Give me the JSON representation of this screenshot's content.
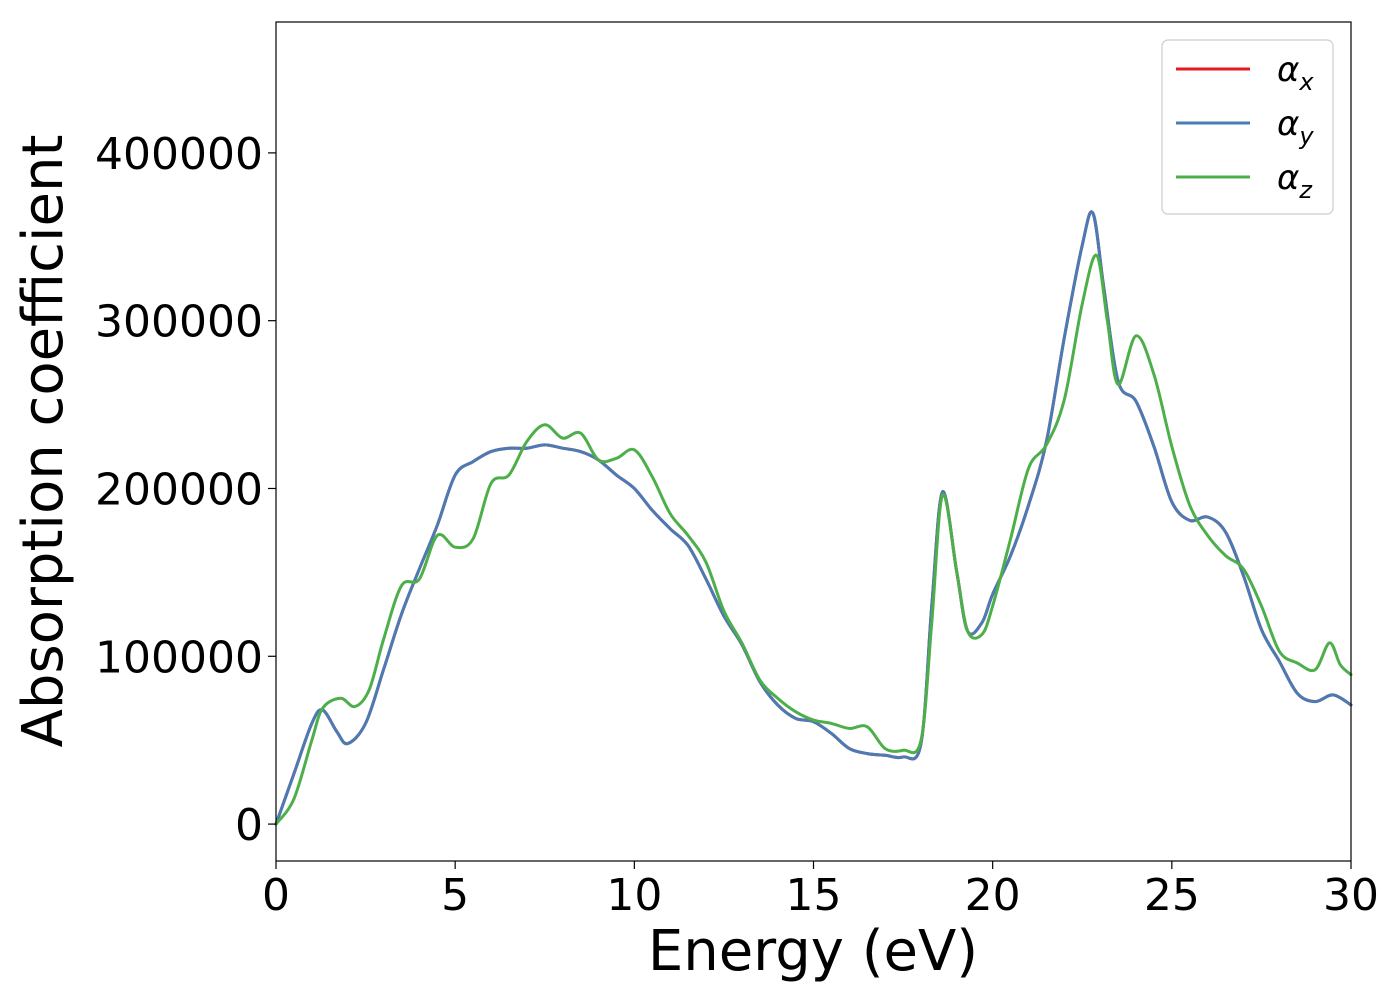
{
  "chart_data": {
    "type": "line",
    "title": "",
    "xlabel": "Energy (eV)",
    "ylabel": "Absorption coefficient",
    "xlim": [
      0,
      30
    ],
    "ylim": [
      -22000,
      478000
    ],
    "xticks": [
      0,
      5,
      10,
      15,
      20,
      25,
      30
    ],
    "yticks": [
      0,
      100000,
      200000,
      300000,
      400000
    ],
    "grid": false,
    "legend_position": "top-right",
    "series": [
      {
        "name": "α_x",
        "symbol": "α",
        "subscript": "x",
        "color": "#e41a1c",
        "x": [
          0,
          0.5,
          1.0,
          1.3,
          1.7,
          2.0,
          2.5,
          3.0,
          3.5,
          4.0,
          4.5,
          5.0,
          5.5,
          6.0,
          6.5,
          7.0,
          7.5,
          8.0,
          8.5,
          9.0,
          9.5,
          10.0,
          10.5,
          11.0,
          11.5,
          12.0,
          12.5,
          13.0,
          13.5,
          14.0,
          14.5,
          15.0,
          15.5,
          16.0,
          16.5,
          17.0,
          17.5,
          18.0,
          18.3,
          18.6,
          19.0,
          19.3,
          19.7,
          20.0,
          20.5,
          21.0,
          21.5,
          22.0,
          22.5,
          22.8,
          23.1,
          23.5,
          24.0,
          24.5,
          25.0,
          25.5,
          26.0,
          26.5,
          27.0,
          27.5,
          28.0,
          28.5,
          29.0,
          29.5,
          30.0
        ],
        "values": [
          0,
          30000,
          60000,
          68000,
          55000,
          48000,
          60000,
          92000,
          125000,
          152000,
          178000,
          208000,
          216000,
          222000,
          224000,
          224000,
          226000,
          224000,
          222000,
          217000,
          208000,
          200000,
          187000,
          176000,
          166000,
          146000,
          124000,
          107000,
          85000,
          71000,
          63000,
          61000,
          54000,
          45000,
          42000,
          41000,
          40000,
          48000,
          130000,
          198000,
          150000,
          115000,
          120000,
          137000,
          160000,
          190000,
          228000,
          290000,
          345000,
          364000,
          320000,
          264000,
          252000,
          225000,
          192000,
          181000,
          183000,
          174000,
          148000,
          116000,
          97000,
          78000,
          73000,
          77000,
          71000
        ]
      },
      {
        "name": "α_y",
        "symbol": "α",
        "subscript": "y",
        "color": "#4a7bb5",
        "x": [
          0,
          0.5,
          1.0,
          1.3,
          1.7,
          2.0,
          2.5,
          3.0,
          3.5,
          4.0,
          4.5,
          5.0,
          5.5,
          6.0,
          6.5,
          7.0,
          7.5,
          8.0,
          8.5,
          9.0,
          9.5,
          10.0,
          10.5,
          11.0,
          11.5,
          12.0,
          12.5,
          13.0,
          13.5,
          14.0,
          14.5,
          15.0,
          15.5,
          16.0,
          16.5,
          17.0,
          17.5,
          18.0,
          18.3,
          18.6,
          19.0,
          19.3,
          19.7,
          20.0,
          20.5,
          21.0,
          21.5,
          22.0,
          22.5,
          22.8,
          23.1,
          23.5,
          24.0,
          24.5,
          25.0,
          25.5,
          26.0,
          26.5,
          27.0,
          27.5,
          28.0,
          28.5,
          29.0,
          29.5,
          30.0
        ],
        "values": [
          0,
          30000,
          60000,
          68000,
          55000,
          48000,
          60000,
          92000,
          125000,
          152000,
          178000,
          208000,
          216000,
          222000,
          224000,
          224000,
          226000,
          224000,
          222000,
          217000,
          208000,
          200000,
          187000,
          176000,
          166000,
          146000,
          124000,
          107000,
          85000,
          71000,
          63000,
          61000,
          54000,
          45000,
          42000,
          41000,
          40000,
          48000,
          130000,
          198000,
          150000,
          115000,
          120000,
          137000,
          160000,
          190000,
          228000,
          290000,
          345000,
          364000,
          320000,
          264000,
          252000,
          225000,
          192000,
          181000,
          183000,
          174000,
          148000,
          116000,
          97000,
          78000,
          73000,
          77000,
          71000
        ]
      },
      {
        "name": "α_z",
        "symbol": "α",
        "subscript": "z",
        "color": "#4daf4a",
        "x": [
          0,
          0.5,
          1.0,
          1.3,
          1.8,
          2.2,
          2.6,
          3.0,
          3.5,
          4.0,
          4.5,
          5.0,
          5.5,
          6.0,
          6.5,
          7.0,
          7.5,
          8.0,
          8.5,
          9.0,
          9.5,
          10.0,
          10.5,
          11.0,
          11.5,
          12.0,
          12.5,
          13.0,
          13.5,
          14.0,
          14.5,
          15.0,
          15.5,
          16.0,
          16.5,
          17.0,
          17.5,
          18.0,
          18.3,
          18.6,
          19.0,
          19.3,
          19.7,
          20.0,
          20.5,
          21.0,
          21.5,
          22.0,
          22.5,
          22.9,
          23.2,
          23.5,
          24.0,
          24.5,
          25.0,
          25.5,
          26.0,
          26.5,
          27.0,
          27.5,
          28.0,
          28.5,
          29.0,
          29.4,
          29.7,
          30.0
        ],
        "values": [
          0,
          15000,
          50000,
          69000,
          75000,
          70000,
          80000,
          110000,
          142000,
          146000,
          172000,
          165000,
          170000,
          203000,
          208000,
          228000,
          238000,
          230000,
          233000,
          217000,
          218000,
          223000,
          207000,
          185000,
          172000,
          156000,
          127000,
          108000,
          86000,
          75000,
          67000,
          62000,
          60000,
          57000,
          58000,
          45000,
          44000,
          50000,
          120000,
          196000,
          150000,
          115000,
          113000,
          130000,
          170000,
          212000,
          226000,
          253000,
          310000,
          339000,
          300000,
          262000,
          291000,
          268000,
          225000,
          190000,
          172000,
          160000,
          152000,
          130000,
          103000,
          96000,
          92000,
          108000,
          95000,
          89000
        ]
      }
    ]
  }
}
